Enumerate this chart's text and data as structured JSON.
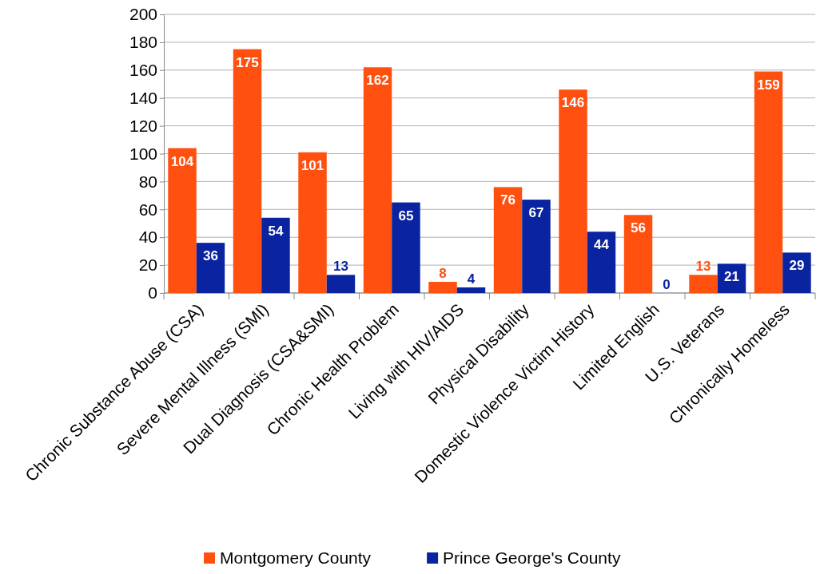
{
  "chart_data": {
    "type": "bar",
    "categories": [
      "Chronic Substance Abuse (CSA)",
      "Severe Mental Illness (SMI)",
      "Dual Diagnosis (CSA&SMI)",
      "Chronic Health Problem",
      "Living with HIV/AIDS",
      "Physical Disability",
      "Domestic Violence Victim History",
      "Limited English",
      "U.S. Veterans",
      "Chronically Homeless"
    ],
    "series": [
      {
        "name": "Montgomery County",
        "color": "#ff5010",
        "values": [
          104,
          175,
          101,
          162,
          8,
          76,
          146,
          56,
          13,
          159
        ]
      },
      {
        "name": "Prince George's County",
        "color": "#0a23a0",
        "values": [
          36,
          54,
          13,
          65,
          4,
          67,
          44,
          0,
          21,
          29
        ]
      }
    ],
    "ylim": [
      0,
      200
    ],
    "yticks": [
      0,
      20,
      40,
      60,
      80,
      100,
      120,
      140,
      160,
      180,
      200
    ],
    "grid": "y",
    "legend": "bottom",
    "data_labels": true
  }
}
